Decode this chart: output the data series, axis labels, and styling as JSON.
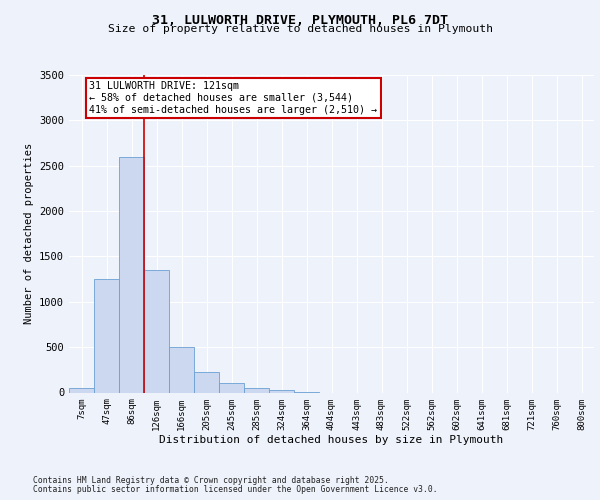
{
  "title_line1": "31, LULWORTH DRIVE, PLYMOUTH, PL6 7DT",
  "title_line2": "Size of property relative to detached houses in Plymouth",
  "xlabel": "Distribution of detached houses by size in Plymouth",
  "ylabel": "Number of detached properties",
  "categories": [
    "7sqm",
    "47sqm",
    "86sqm",
    "126sqm",
    "166sqm",
    "205sqm",
    "245sqm",
    "285sqm",
    "324sqm",
    "364sqm",
    "404sqm",
    "443sqm",
    "483sqm",
    "522sqm",
    "562sqm",
    "602sqm",
    "641sqm",
    "681sqm",
    "721sqm",
    "760sqm",
    "800sqm"
  ],
  "values": [
    50,
    1250,
    2600,
    1350,
    500,
    230,
    100,
    50,
    30,
    10,
    0,
    0,
    0,
    0,
    0,
    0,
    0,
    0,
    0,
    0,
    0
  ],
  "bar_color": "#ccd8ef",
  "bar_edge_color": "#6a9fd4",
  "vline_pos": 2.5,
  "vline_color": "#cc0000",
  "annotation_text": "31 LULWORTH DRIVE: 121sqm\n← 58% of detached houses are smaller (3,544)\n41% of semi-detached houses are larger (2,510) →",
  "annotation_box_facecolor": "white",
  "annotation_box_edgecolor": "#cc0000",
  "ylim": [
    0,
    3500
  ],
  "yticks": [
    0,
    500,
    1000,
    1500,
    2000,
    2500,
    3000,
    3500
  ],
  "plot_bg": "#eef2fb",
  "fig_bg": "#eef2fb",
  "grid_color": "#ffffff",
  "footer_line1": "Contains HM Land Registry data © Crown copyright and database right 2025.",
  "footer_line2": "Contains public sector information licensed under the Open Government Licence v3.0."
}
